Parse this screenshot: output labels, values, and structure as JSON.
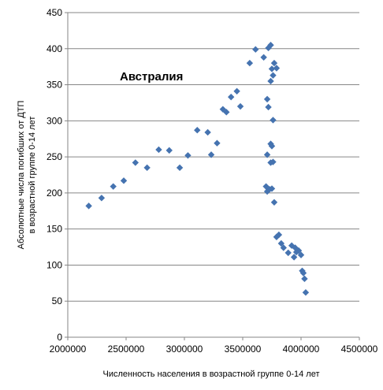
{
  "chart_data": {
    "type": "scatter",
    "title": "Австралия",
    "xlabel": "Численность населения в возрастной группе  0-14 лет",
    "ylabel_lines": [
      "Абсолютные числа погибших от ДТП",
      "в возрастной группе 0-14 лет"
    ],
    "xlim": [
      2000000,
      4500000
    ],
    "ylim": [
      0,
      450
    ],
    "x_ticks": [
      2000000,
      2500000,
      3000000,
      3500000,
      4000000,
      4500000
    ],
    "y_ticks": [
      0,
      50,
      100,
      150,
      200,
      250,
      300,
      350,
      400,
      450
    ],
    "x_tick_labels": [
      "2000000",
      "2500000",
      "3000000",
      "3500000",
      "4000000",
      "4500000"
    ],
    "y_tick_labels": [
      "0",
      "50",
      "100",
      "150",
      "200",
      "250",
      "300",
      "350",
      "400",
      "450"
    ],
    "grid": "horizontal",
    "legend": "none",
    "marker_color": "#4573b0",
    "points": [
      [
        2180000,
        182
      ],
      [
        2290000,
        193
      ],
      [
        2390000,
        209
      ],
      [
        2480000,
        217
      ],
      [
        2580000,
        242
      ],
      [
        2680000,
        235
      ],
      [
        2780000,
        260
      ],
      [
        2870000,
        259
      ],
      [
        2960000,
        235
      ],
      [
        3030000,
        252
      ],
      [
        3110000,
        287
      ],
      [
        3200000,
        284
      ],
      [
        3230000,
        253
      ],
      [
        3280000,
        269
      ],
      [
        3330000,
        316
      ],
      [
        3360000,
        312
      ],
      [
        3400000,
        333
      ],
      [
        3450000,
        341
      ],
      [
        3480000,
        320
      ],
      [
        3560000,
        380
      ],
      [
        3610000,
        399
      ],
      [
        3680000,
        388
      ],
      [
        3720000,
        401
      ],
      [
        3740000,
        405
      ],
      [
        3750000,
        372
      ],
      [
        3770000,
        380
      ],
      [
        3790000,
        373
      ],
      [
        3740000,
        355
      ],
      [
        3760000,
        363
      ],
      [
        3710000,
        330
      ],
      [
        3720000,
        319
      ],
      [
        3760000,
        301
      ],
      [
        3740000,
        268
      ],
      [
        3750000,
        265
      ],
      [
        3710000,
        253
      ],
      [
        3740000,
        242
      ],
      [
        3760000,
        243
      ],
      [
        3700000,
        209
      ],
      [
        3710000,
        202
      ],
      [
        3730000,
        205
      ],
      [
        3750000,
        206
      ],
      [
        3770000,
        187
      ],
      [
        3790000,
        139
      ],
      [
        3810000,
        142
      ],
      [
        3830000,
        130
      ],
      [
        3850000,
        124
      ],
      [
        3890000,
        117
      ],
      [
        3920000,
        127
      ],
      [
        3940000,
        111
      ],
      [
        3950000,
        124
      ],
      [
        3960000,
        118
      ],
      [
        3980000,
        120
      ],
      [
        4000000,
        114
      ],
      [
        4010000,
        92
      ],
      [
        4020000,
        89
      ],
      [
        4030000,
        81
      ],
      [
        4040000,
        62
      ]
    ]
  }
}
